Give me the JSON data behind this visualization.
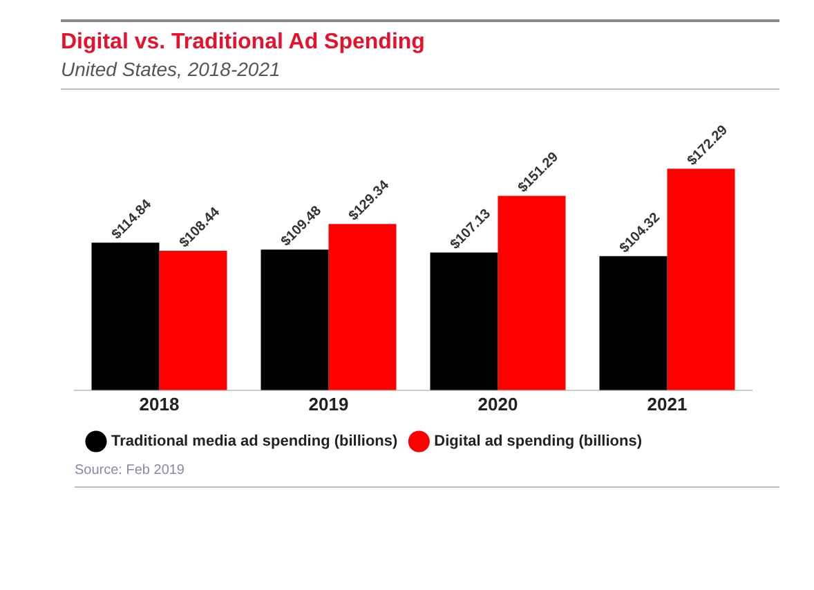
{
  "chart_data": {
    "type": "bar",
    "title": "Digital vs. Traditional Ad Spending",
    "subtitle": "United States, 2018-2021",
    "categories": [
      "2018",
      "2019",
      "2020",
      "2021"
    ],
    "series": [
      {
        "name": "Traditional media ad spending (billions)",
        "color": "#000000",
        "values": [
          114.84,
          109.48,
          107.13,
          104.32
        ],
        "value_labels": [
          "$114.84",
          "$109.48",
          "$107.13",
          "$104.32"
        ]
      },
      {
        "name": "Digital ad spending (billions)",
        "color": "#ff0000",
        "values": [
          108.44,
          129.34,
          151.29,
          172.29
        ],
        "value_labels": [
          "$108.44",
          "$129.34",
          "$151.29",
          "$172.29"
        ]
      }
    ],
    "legend": "bottom left",
    "grid": false,
    "annotations": [
      "Source: Feb 2019"
    ]
  }
}
